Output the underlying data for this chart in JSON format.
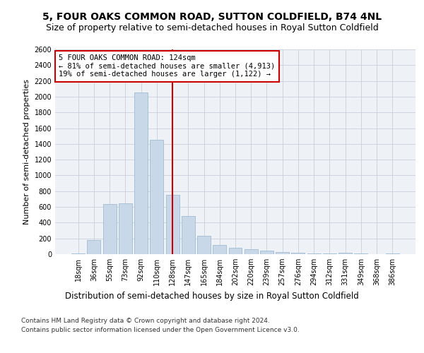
{
  "title": "5, FOUR OAKS COMMON ROAD, SUTTON COLDFIELD, B74 4NL",
  "subtitle": "Size of property relative to semi-detached houses in Royal Sutton Coldfield",
  "xlabel_bottom": "Distribution of semi-detached houses by size in Royal Sutton Coldfield",
  "ylabel": "Number of semi-detached properties",
  "footer_line1": "Contains HM Land Registry data © Crown copyright and database right 2024.",
  "footer_line2": "Contains public sector information licensed under the Open Government Licence v3.0.",
  "annotation_title": "5 FOUR OAKS COMMON ROAD: 124sqm",
  "annotation_line2": "← 81% of semi-detached houses are smaller (4,913)",
  "annotation_line3": "19% of semi-detached houses are larger (1,122) →",
  "bar_color": "#c8d8e8",
  "bar_edgecolor": "#a0bcd0",
  "vline_color": "#cc0000",
  "annotation_box_edgecolor": "#cc0000",
  "annotation_box_facecolor": "white",
  "plot_bg_color": "#eef2f7",
  "fig_bg_color": "#ffffff",
  "categories": [
    "18sqm",
    "36sqm",
    "55sqm",
    "73sqm",
    "92sqm",
    "110sqm",
    "128sqm",
    "147sqm",
    "165sqm",
    "184sqm",
    "202sqm",
    "220sqm",
    "239sqm",
    "257sqm",
    "276sqm",
    "294sqm",
    "312sqm",
    "331sqm",
    "349sqm",
    "368sqm",
    "386sqm"
  ],
  "values": [
    5,
    175,
    640,
    650,
    2050,
    1450,
    750,
    480,
    230,
    120,
    80,
    60,
    45,
    25,
    20,
    10,
    5,
    20,
    5,
    0,
    5
  ],
  "ylim": [
    0,
    2600
  ],
  "yticks": [
    0,
    200,
    400,
    600,
    800,
    1000,
    1200,
    1400,
    1600,
    1800,
    2000,
    2200,
    2400,
    2600
  ],
  "grid_color": "#c8d0dc",
  "vline_bin_index": 6,
  "title_fontsize": 10,
  "subtitle_fontsize": 9,
  "tick_fontsize": 7,
  "ylabel_fontsize": 8,
  "xlabel_bottom_fontsize": 8.5,
  "footer_fontsize": 6.5,
  "annotation_fontsize": 7.5
}
